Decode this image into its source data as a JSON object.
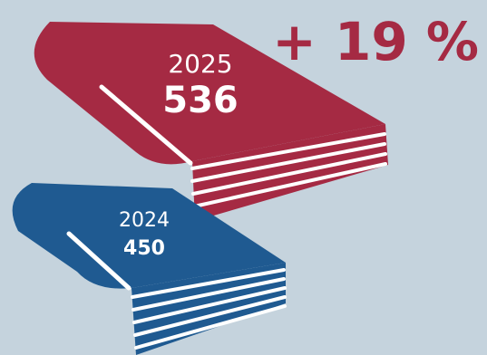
{
  "chart_data": {
    "type": "pictogram",
    "categories": [
      "2025",
      "2024"
    ],
    "values": [
      536,
      450
    ],
    "series": [
      {
        "category": "2025",
        "value": 536,
        "color": "#a52a43"
      },
      {
        "category": "2024",
        "value": 450,
        "color": "#1f5a91"
      }
    ],
    "annotation": "+ 19 %"
  },
  "labels": {
    "book_2025_year": "2025",
    "book_2025_value": "536",
    "book_2024_year": "2024",
    "book_2024_value": "450",
    "change": "+ 19 %"
  },
  "colors": {
    "background": "#c5d3dd",
    "book_2025": "#a52a43",
    "book_2024": "#1f5a91",
    "pages_line": "#ffffff",
    "change_text": "#a52a43"
  }
}
